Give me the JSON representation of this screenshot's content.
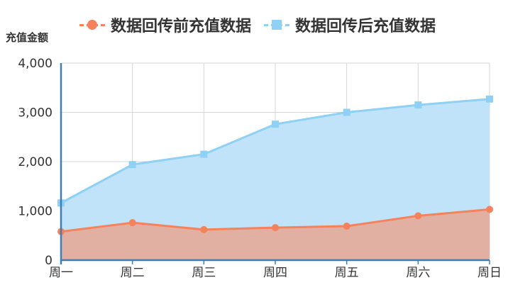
{
  "chart_data": {
    "type": "area",
    "title": "",
    "ylabel": "充值金额",
    "xlabel": "",
    "categories": [
      "周一",
      "周二",
      "周三",
      "周四",
      "周五",
      "周六",
      "周日"
    ],
    "ylim": [
      0,
      4000
    ],
    "yticks": [
      0,
      1000,
      2000,
      3000,
      4000
    ],
    "ytick_labels": [
      "0",
      "1,000",
      "2,000",
      "3,000",
      "4,000"
    ],
    "grid": true,
    "legend_position": "top",
    "series": [
      {
        "name": "数据回传前充值数据",
        "values": [
          580,
          760,
          620,
          660,
          690,
          900,
          1030
        ],
        "color": "#f5825a",
        "fill": "#e2b0a3",
        "marker": "circle"
      },
      {
        "name": "数据回传后充值数据",
        "values": [
          1160,
          1940,
          2150,
          2760,
          3000,
          3150,
          3270
        ],
        "color": "#8fd0f5",
        "fill": "#c0e3fa",
        "marker": "square"
      }
    ]
  }
}
